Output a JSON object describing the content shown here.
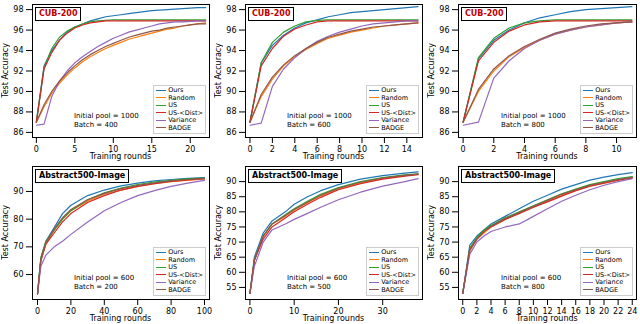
{
  "chart_data": [
    {
      "type": "line",
      "title": "CUB-200",
      "x_label": "Training rounds",
      "y_label": "Test Accuracy",
      "annotations": [
        "Initial pool = 1000",
        "Batch = 400"
      ],
      "legend": "lower right",
      "grid": false,
      "x": [
        0,
        1,
        2,
        3,
        4,
        5,
        6,
        7,
        8,
        9,
        10,
        11,
        12,
        13,
        14,
        15,
        16,
        17,
        18,
        19,
        20,
        21,
        22
      ],
      "xlim": [
        -0.5,
        22.5
      ],
      "xticks": [
        0,
        5,
        10,
        15,
        20
      ],
      "ylim": [
        85.5,
        98.5
      ],
      "yticks": [
        86,
        88,
        90,
        92,
        94,
        96,
        98
      ],
      "series": [
        {
          "name": "Ours",
          "color": "#1f77b4",
          "values": [
            87,
            92.5,
            94,
            95,
            95.8,
            96.3,
            96.6,
            96.9,
            97.1,
            97.3,
            97.4,
            97.5,
            97.6,
            97.7,
            97.8,
            97.9,
            97.95,
            98,
            98.05,
            98.1,
            98.15,
            98.2,
            98.2
          ]
        },
        {
          "name": "Random",
          "color": "#ff7f0e",
          "values": [
            87,
            88.5,
            89.8,
            90.8,
            91.6,
            92.3,
            92.9,
            93.4,
            93.8,
            94.2,
            94.5,
            94.8,
            95.1,
            95.3,
            95.5,
            95.7,
            95.9,
            96.1,
            96.2,
            96.4,
            96.5,
            96.6,
            96.7
          ]
        },
        {
          "name": "US",
          "color": "#2ca02c",
          "values": [
            87,
            92.3,
            94.2,
            95.3,
            95.9,
            96.3,
            96.6,
            96.8,
            96.9,
            96.95,
            97,
            97,
            97,
            97,
            97,
            97,
            97,
            97,
            97,
            97,
            97,
            97,
            97
          ]
        },
        {
          "name": "US-<Dist>",
          "color": "#d62728",
          "values": [
            87,
            92.2,
            93.8,
            95,
            95.7,
            96.2,
            96.5,
            96.7,
            96.8,
            96.9,
            96.9,
            96.9,
            96.9,
            96.9,
            96.9,
            96.9,
            96.9,
            96.9,
            96.9,
            96.9,
            96.9,
            96.9,
            96.9
          ]
        },
        {
          "name": "Variance",
          "color": "#9467bd",
          "values": [
            86.7,
            86.8,
            89.5,
            91,
            92,
            92.8,
            93.4,
            93.9,
            94.4,
            94.8,
            95.2,
            95.5,
            95.8,
            96,
            96.2,
            96.4,
            96.6,
            96.7,
            96.8,
            96.8,
            96.85,
            96.9,
            96.9
          ]
        },
        {
          "name": "BADGE",
          "color": "#8c564b",
          "values": [
            87,
            88.7,
            90,
            91,
            91.8,
            92.5,
            93.1,
            93.6,
            94,
            94.4,
            94.7,
            95,
            95.3,
            95.5,
            95.7,
            95.9,
            96,
            96.2,
            96.3,
            96.4,
            96.5,
            96.6,
            96.6
          ]
        }
      ]
    },
    {
      "type": "line",
      "title": "CUB-200",
      "x_label": "Training rounds",
      "y_label": "Test Accuracy",
      "annotations": [
        "Initial pool = 1000",
        "Batch = 600"
      ],
      "legend": "lower right",
      "grid": false,
      "x": [
        0,
        1,
        2,
        3,
        4,
        5,
        6,
        7,
        8,
        9,
        10,
        11,
        12,
        13,
        14,
        15
      ],
      "xlim": [
        -0.4,
        15.4
      ],
      "xticks": [
        0,
        2,
        4,
        6,
        8,
        10,
        12,
        14
      ],
      "ylim": [
        85.5,
        98.5
      ],
      "yticks": [
        86,
        88,
        90,
        92,
        94,
        96,
        98
      ],
      "series": [
        {
          "name": "Ours",
          "color": "#1f77b4",
          "values": [
            87,
            92.8,
            94.5,
            95.5,
            96.2,
            96.7,
            97,
            97.3,
            97.5,
            97.7,
            97.8,
            97.9,
            98,
            98.1,
            98.2,
            98.3
          ]
        },
        {
          "name": "Random",
          "color": "#ff7f0e",
          "values": [
            87,
            89.5,
            91.2,
            92.5,
            93.4,
            94.1,
            94.7,
            95.2,
            95.5,
            95.8,
            96,
            96.2,
            96.4,
            96.5,
            96.6,
            96.7
          ]
        },
        {
          "name": "US",
          "color": "#2ca02c",
          "values": [
            87,
            92.8,
            94.8,
            95.8,
            96.4,
            96.8,
            96.95,
            97,
            97,
            97,
            97,
            97,
            97,
            97,
            97,
            97
          ]
        },
        {
          "name": "US-<Dist>",
          "color": "#d62728",
          "values": [
            87,
            92.5,
            94.2,
            95.4,
            96.1,
            96.5,
            96.8,
            96.9,
            96.9,
            96.9,
            96.9,
            96.9,
            96.9,
            96.9,
            96.9,
            96.9
          ]
        },
        {
          "name": "Variance",
          "color": "#9467bd",
          "values": [
            86.7,
            86.9,
            90.5,
            92.2,
            93.3,
            94.2,
            94.9,
            95.4,
            95.8,
            96.1,
            96.4,
            96.6,
            96.7,
            96.8,
            96.9,
            96.9
          ]
        },
        {
          "name": "BADGE",
          "color": "#8c564b",
          "values": [
            87,
            89.7,
            91.4,
            92.6,
            93.5,
            94.2,
            94.8,
            95.3,
            95.6,
            95.9,
            96.1,
            96.3,
            96.4,
            96.5,
            96.6,
            96.7
          ]
        }
      ]
    },
    {
      "type": "line",
      "title": "CUB-200",
      "x_label": "Training rounds",
      "y_label": "Test Accuracy",
      "annotations": [
        "Initial pool = 1000",
        "Batch = 800"
      ],
      "legend": "lower right",
      "grid": false,
      "x": [
        0,
        1,
        2,
        3,
        4,
        5,
        6,
        7,
        8,
        9,
        10,
        11
      ],
      "xlim": [
        -0.3,
        11.3
      ],
      "xticks": [
        0,
        2,
        4,
        6,
        8,
        10
      ],
      "ylim": [
        85.5,
        98.5
      ],
      "yticks": [
        86,
        88,
        90,
        92,
        94,
        96,
        98
      ],
      "series": [
        {
          "name": "Ours",
          "color": "#1f77b4",
          "values": [
            87,
            93.2,
            95,
            96,
            96.7,
            97.2,
            97.5,
            97.8,
            98,
            98.1,
            98.2,
            98.3
          ]
        },
        {
          "name": "Random",
          "color": "#ff7f0e",
          "values": [
            87,
            90,
            92,
            93.4,
            94.3,
            95,
            95.6,
            96,
            96.3,
            96.5,
            96.7,
            96.8
          ]
        },
        {
          "name": "US",
          "color": "#2ca02c",
          "values": [
            87,
            93.3,
            95.2,
            96.2,
            96.7,
            96.9,
            97,
            97,
            97,
            97,
            97,
            97
          ]
        },
        {
          "name": "US-<Dist>",
          "color": "#d62728",
          "values": [
            87,
            93,
            94.8,
            95.9,
            96.5,
            96.8,
            96.9,
            96.9,
            96.9,
            96.9,
            96.9,
            96.9
          ]
        },
        {
          "name": "Variance",
          "color": "#9467bd",
          "values": [
            86.7,
            87,
            91.3,
            93,
            94.2,
            95,
            95.6,
            96,
            96.3,
            96.5,
            96.7,
            96.8
          ]
        },
        {
          "name": "BADGE",
          "color": "#8c564b",
          "values": [
            87,
            90.2,
            92.2,
            93.5,
            94.4,
            95.1,
            95.7,
            96.1,
            96.4,
            96.6,
            96.7,
            96.8
          ]
        }
      ]
    },
    {
      "type": "line",
      "title": "Abstract500-Image",
      "x_label": "Training rounds",
      "y_label": "Test Accuracy",
      "annotations": [
        "Initial pool = 600",
        "Batch = 200"
      ],
      "legend": "lower right",
      "grid": false,
      "x": [
        0,
        2,
        5,
        10,
        15,
        20,
        30,
        40,
        50,
        60,
        70,
        80,
        90,
        100
      ],
      "xlim": [
        -3,
        103
      ],
      "xticks": [
        0,
        20,
        40,
        60,
        80,
        100
      ],
      "ylim": [
        51,
        99
      ],
      "yticks": [
        60,
        70,
        80,
        90
      ],
      "series": [
        {
          "name": "Ours",
          "color": "#1f77b4",
          "values": [
            53,
            66,
            72,
            77,
            82,
            85,
            88.5,
            90.5,
            92,
            93,
            93.8,
            94.3,
            94.7,
            95
          ]
        },
        {
          "name": "Random",
          "color": "#ff7f0e",
          "values": [
            53,
            65,
            71,
            76,
            80,
            83,
            86.5,
            89,
            90.5,
            91.8,
            92.8,
            93.5,
            94,
            94.5
          ]
        },
        {
          "name": "US",
          "color": "#2ca02c",
          "values": [
            53,
            66,
            72,
            76,
            80,
            83,
            87,
            89.5,
            91.2,
            92.5,
            93.4,
            94,
            94.5,
            94.8
          ]
        },
        {
          "name": "US-<Dist>",
          "color": "#d62728",
          "values": [
            53,
            65,
            71,
            75,
            79,
            82,
            86,
            88.5,
            90.5,
            91.8,
            92.8,
            93.6,
            94.2,
            94.6
          ]
        },
        {
          "name": "Variance",
          "color": "#9467bd",
          "values": [
            53,
            63,
            67,
            70,
            72,
            74.5,
            79,
            83,
            86,
            88.5,
            90.3,
            91.8,
            93,
            94
          ]
        },
        {
          "name": "BADGE",
          "color": "#8c564b",
          "values": [
            53,
            65.5,
            71.5,
            76.5,
            80.5,
            83.5,
            87,
            89.3,
            91,
            92.2,
            93.1,
            93.8,
            94.3,
            94.7
          ]
        }
      ]
    },
    {
      "type": "line",
      "title": "Abstract500-Image",
      "x_label": "Training rounds",
      "y_label": "Test Accuracy",
      "annotations": [
        "Initial pool = 600",
        "Batch = 500"
      ],
      "legend": "lower right",
      "grid": false,
      "x": [
        0,
        1,
        3,
        5,
        8,
        10,
        13,
        16,
        20,
        25,
        30,
        35,
        38
      ],
      "xlim": [
        -1,
        39
      ],
      "xticks": [
        0,
        10,
        20,
        30
      ],
      "ylim": [
        51,
        95
      ],
      "yticks": [
        55,
        60,
        65,
        70,
        75,
        80,
        85,
        90
      ],
      "series": [
        {
          "name": "Ours",
          "color": "#1f77b4",
          "values": [
            53,
            65,
            73,
            77,
            80,
            82.5,
            85,
            87,
            89,
            90.8,
            92,
            92.8,
            93.2
          ]
        },
        {
          "name": "Random",
          "color": "#ff7f0e",
          "values": [
            53,
            64,
            72,
            76,
            78.5,
            80.5,
            83,
            85.3,
            87.5,
            89.5,
            91,
            92,
            92.5
          ]
        },
        {
          "name": "US",
          "color": "#2ca02c",
          "values": [
            53,
            64,
            72,
            76,
            79,
            81,
            83.5,
            85.8,
            88,
            90,
            91.3,
            92.2,
            92.6
          ]
        },
        {
          "name": "US-<Dist>",
          "color": "#d62728",
          "values": [
            53,
            64,
            71,
            75,
            78,
            80,
            82.5,
            84.8,
            87.3,
            89.3,
            90.8,
            91.8,
            92.3
          ]
        },
        {
          "name": "Variance",
          "color": "#9467bd",
          "values": [
            53,
            62,
            70,
            74,
            76,
            77.5,
            79.5,
            81.5,
            84,
            86.5,
            88.5,
            90,
            91
          ]
        },
        {
          "name": "BADGE",
          "color": "#8c564b",
          "values": [
            53,
            64,
            72,
            76,
            78.8,
            80.8,
            83.2,
            85.5,
            87.8,
            89.8,
            91.2,
            92.1,
            92.5
          ]
        }
      ]
    },
    {
      "type": "line",
      "title": "Abstract500-Image",
      "x_label": "Training rounds",
      "y_label": "Test Accuracy",
      "annotations": [
        "Initial pool = 600",
        "Batch = 800"
      ],
      "legend": "lower right",
      "grid": false,
      "x": [
        0,
        1,
        2,
        3,
        4,
        6,
        8,
        10,
        12,
        14,
        16,
        18,
        20,
        22,
        24
      ],
      "xlim": [
        -0.6,
        24.6
      ],
      "xticks": [
        0,
        2,
        4,
        6,
        8,
        10,
        12,
        14,
        16,
        18,
        20,
        22,
        24
      ],
      "ylim": [
        51,
        95
      ],
      "yticks": [
        55,
        60,
        65,
        70,
        75,
        80,
        85,
        90
      ],
      "series": [
        {
          "name": "Ours",
          "color": "#1f77b4",
          "values": [
            53,
            69,
            72,
            74,
            76,
            78.5,
            81,
            83.5,
            85.5,
            87.5,
            89,
            90.5,
            91.5,
            92.3,
            93
          ]
        },
        {
          "name": "Random",
          "color": "#ff7f0e",
          "values": [
            53,
            67,
            71,
            73,
            75,
            77.5,
            79.5,
            81.5,
            83.5,
            85.5,
            87,
            88.5,
            89.5,
            90.5,
            91.2
          ]
        },
        {
          "name": "US",
          "color": "#2ca02c",
          "values": [
            53,
            68,
            71.5,
            74,
            75.5,
            78,
            80,
            82,
            84,
            86,
            87.5,
            89,
            90,
            91,
            91.7
          ]
        },
        {
          "name": "US-<Dist>",
          "color": "#d62728",
          "values": [
            53,
            67.5,
            71,
            73.5,
            75,
            77.5,
            79.5,
            81.5,
            83.3,
            85.2,
            87,
            88.5,
            89.5,
            90.5,
            91.3
          ]
        },
        {
          "name": "Variance",
          "color": "#9467bd",
          "values": [
            53,
            66,
            70,
            72,
            73.5,
            75,
            76,
            78.5,
            81,
            83.5,
            85.5,
            87.3,
            88.8,
            90,
            91
          ]
        },
        {
          "name": "BADGE",
          "color": "#8c564b",
          "values": [
            53,
            67.5,
            71,
            73.5,
            75.2,
            77.8,
            79.8,
            81.8,
            83.8,
            85.8,
            87.3,
            88.8,
            89.8,
            90.7,
            91.4
          ]
        }
      ]
    }
  ]
}
